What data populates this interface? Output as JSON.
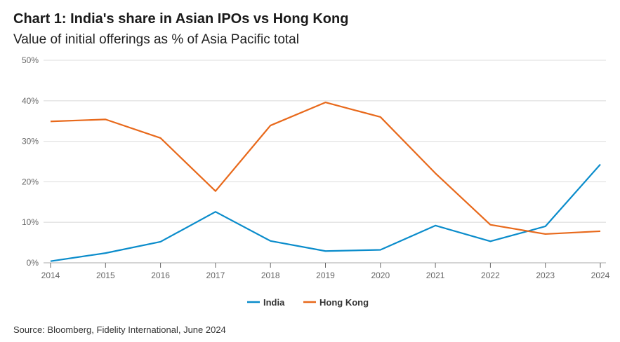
{
  "header": {
    "title": "Chart 1: India's share in Asian IPOs vs Hong Kong",
    "subtitle": "Value of initial offerings as % of Asia Pacific total"
  },
  "footer": {
    "source": "Source: Bloomberg, Fidelity International, June 2024"
  },
  "chart_data": {
    "type": "line",
    "title": "Chart 1: India's share in Asian IPOs vs Hong Kong",
    "subtitle": "Value of initial offerings as % of Asia Pacific total",
    "x": [
      "2014",
      "2015",
      "2016",
      "2017",
      "2018",
      "2019",
      "2020",
      "2021",
      "2022",
      "2023",
      "2024"
    ],
    "ylim": [
      0,
      50
    ],
    "yticks": [
      0,
      10,
      20,
      30,
      40,
      50
    ],
    "ytick_labels": [
      "0%",
      "10%",
      "20%",
      "30%",
      "40%",
      "50%"
    ],
    "grid": true,
    "legend": "bottom",
    "series": [
      {
        "name": "India",
        "color": "#0a8ccb",
        "values": [
          0.4,
          2.4,
          5.2,
          12.6,
          5.4,
          2.9,
          3.2,
          9.2,
          5.3,
          9.0,
          24.3
        ]
      },
      {
        "name": "Hong Kong",
        "color": "#e8691b",
        "values": [
          34.9,
          35.4,
          30.8,
          17.7,
          33.9,
          39.6,
          36.0,
          22.1,
          9.4,
          7.1,
          7.8
        ]
      }
    ]
  }
}
